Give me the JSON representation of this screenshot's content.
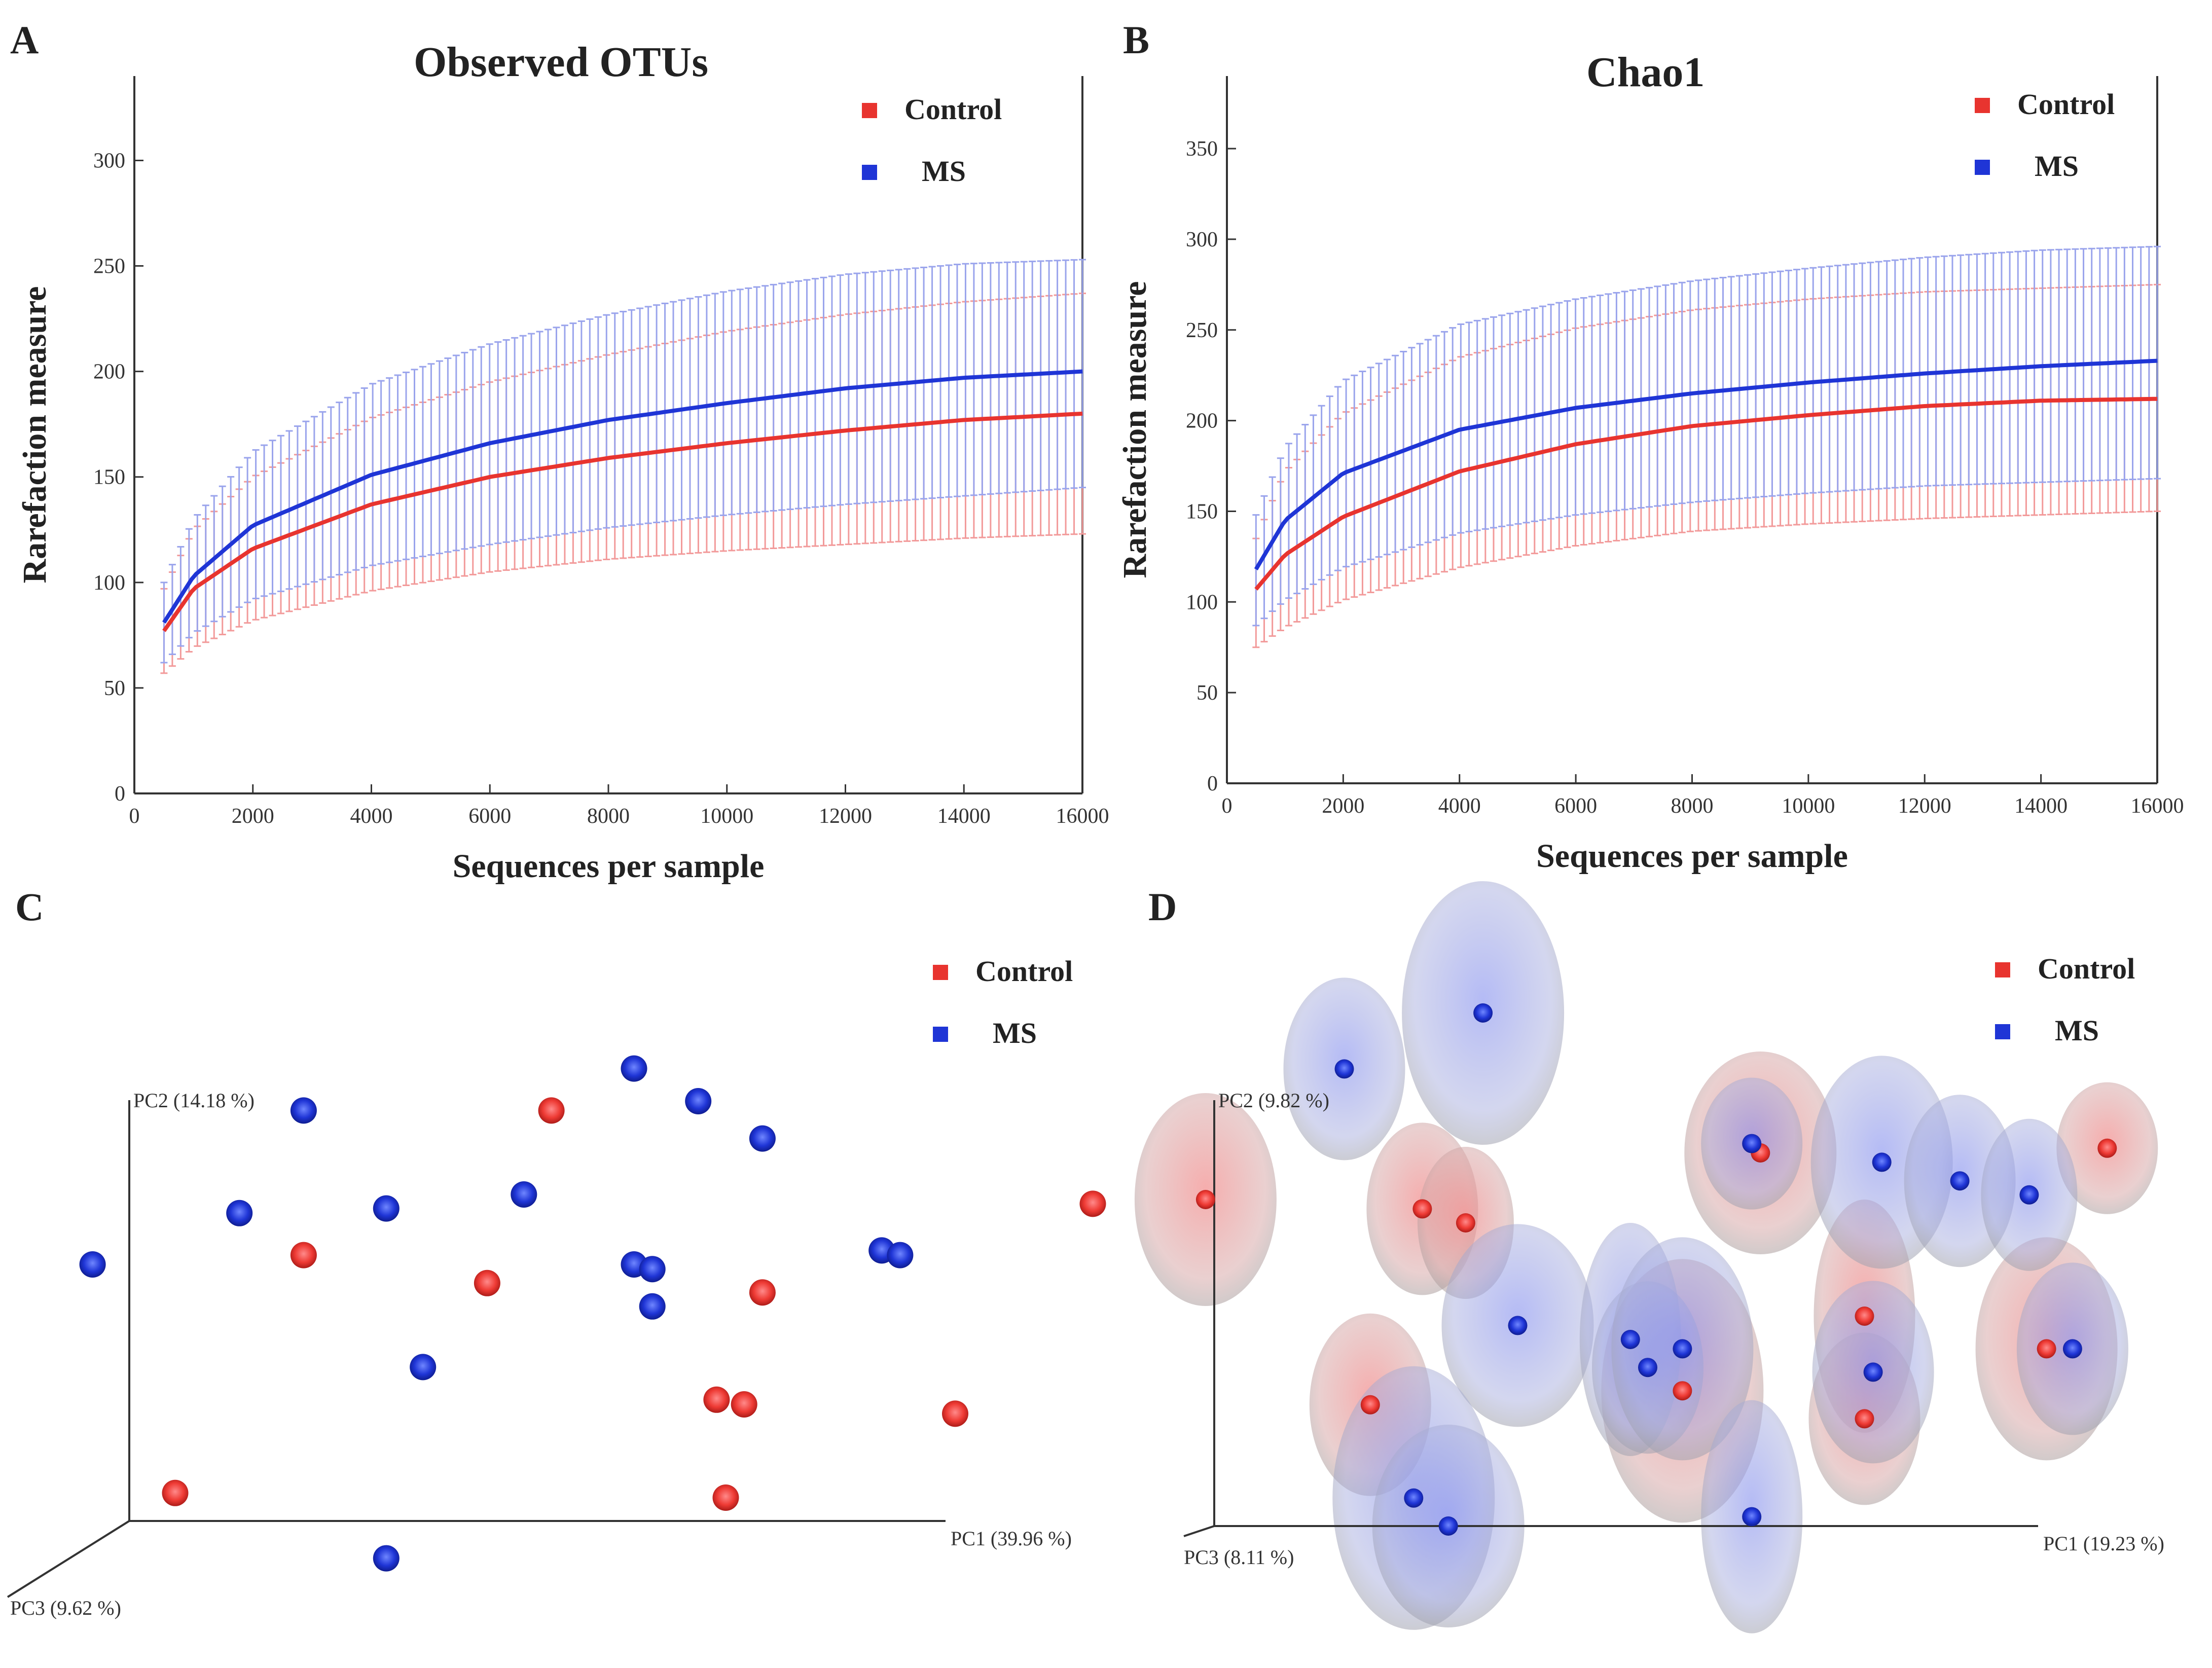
{
  "panel_labels": [
    "A",
    "B",
    "C",
    "D"
  ],
  "colors": {
    "control": "#e8342f",
    "ms": "#1f35d6",
    "control_err": "#f29a9a",
    "ms_err": "#9aa4ec",
    "axis": "#333333",
    "text": "#222222"
  },
  "chart_data": [
    {
      "panel": "A",
      "type": "line",
      "title": "Observed OTUs",
      "xlabel": "Sequences per sample",
      "ylabel": "Rarefaction measure",
      "xlim": [
        0,
        16000
      ],
      "ylim": [
        0,
        340
      ],
      "xticks": [
        0,
        2000,
        4000,
        6000,
        8000,
        10000,
        12000,
        14000,
        16000
      ],
      "yticks": [
        0,
        50,
        100,
        150,
        200,
        250,
        300
      ],
      "legend": [
        "Control",
        "MS"
      ],
      "legend_position": "top-right",
      "x": [
        500,
        1000,
        2000,
        4000,
        6000,
        8000,
        10000,
        12000,
        14000,
        16000
      ],
      "series": [
        {
          "name": "Control",
          "values": [
            77,
            97,
            116,
            137,
            150,
            159,
            166,
            172,
            177,
            180
          ],
          "err_low": [
            57,
            69,
            82,
            96,
            105,
            111,
            115,
            118,
            121,
            123
          ],
          "err_high": [
            97,
            125,
            150,
            178,
            195,
            208,
            219,
            227,
            233,
            237
          ]
        },
        {
          "name": "MS",
          "values": [
            81,
            103,
            127,
            151,
            166,
            177,
            185,
            192,
            197,
            200
          ],
          "err_low": [
            62,
            76,
            92,
            108,
            118,
            126,
            132,
            137,
            141,
            145
          ],
          "err_high": [
            100,
            130,
            162,
            194,
            213,
            227,
            238,
            246,
            251,
            253
          ]
        }
      ]
    },
    {
      "panel": "B",
      "type": "line",
      "title": "Chao1",
      "xlabel": "Sequences per sample",
      "ylabel": "Rarefaction measure",
      "xlim": [
        0,
        16000
      ],
      "ylim": [
        0,
        390
      ],
      "xticks": [
        0,
        2000,
        4000,
        6000,
        8000,
        10000,
        12000,
        14000,
        16000
      ],
      "yticks": [
        0,
        50,
        100,
        150,
        200,
        250,
        300,
        350
      ],
      "legend": [
        "Control",
        "MS"
      ],
      "legend_position": "top-right",
      "x": [
        500,
        1000,
        2000,
        4000,
        6000,
        8000,
        10000,
        12000,
        14000,
        16000
      ],
      "series": [
        {
          "name": "Control",
          "values": [
            107,
            126,
            147,
            172,
            187,
            197,
            203,
            208,
            211,
            212
          ],
          "err_low": [
            75,
            86,
            101,
            119,
            131,
            139,
            143,
            146,
            148,
            150
          ],
          "err_high": [
            135,
            172,
            204,
            235,
            251,
            261,
            267,
            271,
            273,
            275
          ]
        },
        {
          "name": "MS",
          "values": [
            118,
            145,
            171,
            195,
            207,
            215,
            221,
            226,
            230,
            233
          ],
          "err_low": [
            87,
            101,
            119,
            138,
            148,
            155,
            160,
            164,
            166,
            168
          ],
          "err_high": [
            148,
            185,
            222,
            253,
            267,
            277,
            284,
            290,
            294,
            296
          ]
        }
      ]
    },
    {
      "panel": "C",
      "type": "scatter",
      "projection": "3d",
      "axis_labels": {
        "x": "PC1 (39.96 %)",
        "y": "PC2 (14.18 %)",
        "z": "PC3 (9.62 %)"
      },
      "legend": [
        "Control",
        "MS"
      ],
      "legend_position": "top-right",
      "note": "x = PC1, y = PC2 in normalized axis units (0-1); points as they appear in the projected view",
      "series": [
        {
          "name": "Control",
          "points": [
            [
              0.46,
              0.88
            ],
            [
              0.19,
              0.57
            ],
            [
              0.39,
              0.51
            ],
            [
              0.69,
              0.49
            ],
            [
              0.64,
              0.26
            ],
            [
              0.67,
              0.25
            ],
            [
              0.9,
              0.23
            ],
            [
              0.05,
              0.06
            ],
            [
              0.65,
              0.05
            ],
            [
              1.05,
              0.68
            ]
          ]
        },
        {
          "name": "MS",
          "points": [
            [
              0.19,
              0.88
            ],
            [
              0.55,
              0.97
            ],
            [
              0.62,
              0.9
            ],
            [
              0.69,
              0.82
            ],
            [
              0.12,
              0.66
            ],
            [
              0.28,
              0.67
            ],
            [
              0.43,
              0.7
            ],
            [
              0.55,
              0.55
            ],
            [
              0.57,
              0.54
            ],
            [
              0.82,
              0.58
            ],
            [
              0.84,
              0.57
            ],
            [
              0.57,
              0.46
            ],
            [
              0.32,
              0.33
            ],
            [
              -0.04,
              0.55
            ],
            [
              0.28,
              -0.08
            ]
          ]
        }
      ]
    },
    {
      "panel": "D",
      "type": "scatter",
      "projection": "3d",
      "axis_labels": {
        "x": "PC1 (19.23 %)",
        "y": "PC2 (9.82 %)",
        "z": "PC3 (8.11 %)"
      },
      "legend": [
        "Control",
        "MS"
      ],
      "legend_position": "top-right",
      "note": "x = PC1, y = PC2 in normalized axis units (0-1); each point is surrounded by a translucent confidence ellipsoid",
      "series": [
        {
          "name": "Control",
          "points": [
            [
              -0.01,
              0.7
            ],
            [
              0.24,
              0.68
            ],
            [
              0.29,
              0.65
            ],
            [
              0.18,
              0.26
            ],
            [
              0.54,
              0.29
            ],
            [
              0.63,
              0.8
            ],
            [
              0.75,
              0.45
            ],
            [
              0.75,
              0.23
            ],
            [
              0.96,
              0.38
            ],
            [
              1.03,
              0.81
            ]
          ]
        },
        {
          "name": "MS",
          "points": [
            [
              0.15,
              0.98
            ],
            [
              0.31,
              1.1
            ],
            [
              0.35,
              0.43
            ],
            [
              0.48,
              0.4
            ],
            [
              0.5,
              0.34
            ],
            [
              0.54,
              0.38
            ],
            [
              0.62,
              0.82
            ],
            [
              0.77,
              0.78
            ],
            [
              0.86,
              0.74
            ],
            [
              0.94,
              0.71
            ],
            [
              0.76,
              0.33
            ],
            [
              0.23,
              0.06
            ],
            [
              0.27,
              0.0
            ],
            [
              0.62,
              0.02
            ],
            [
              0.99,
              0.38
            ]
          ]
        }
      ]
    }
  ]
}
